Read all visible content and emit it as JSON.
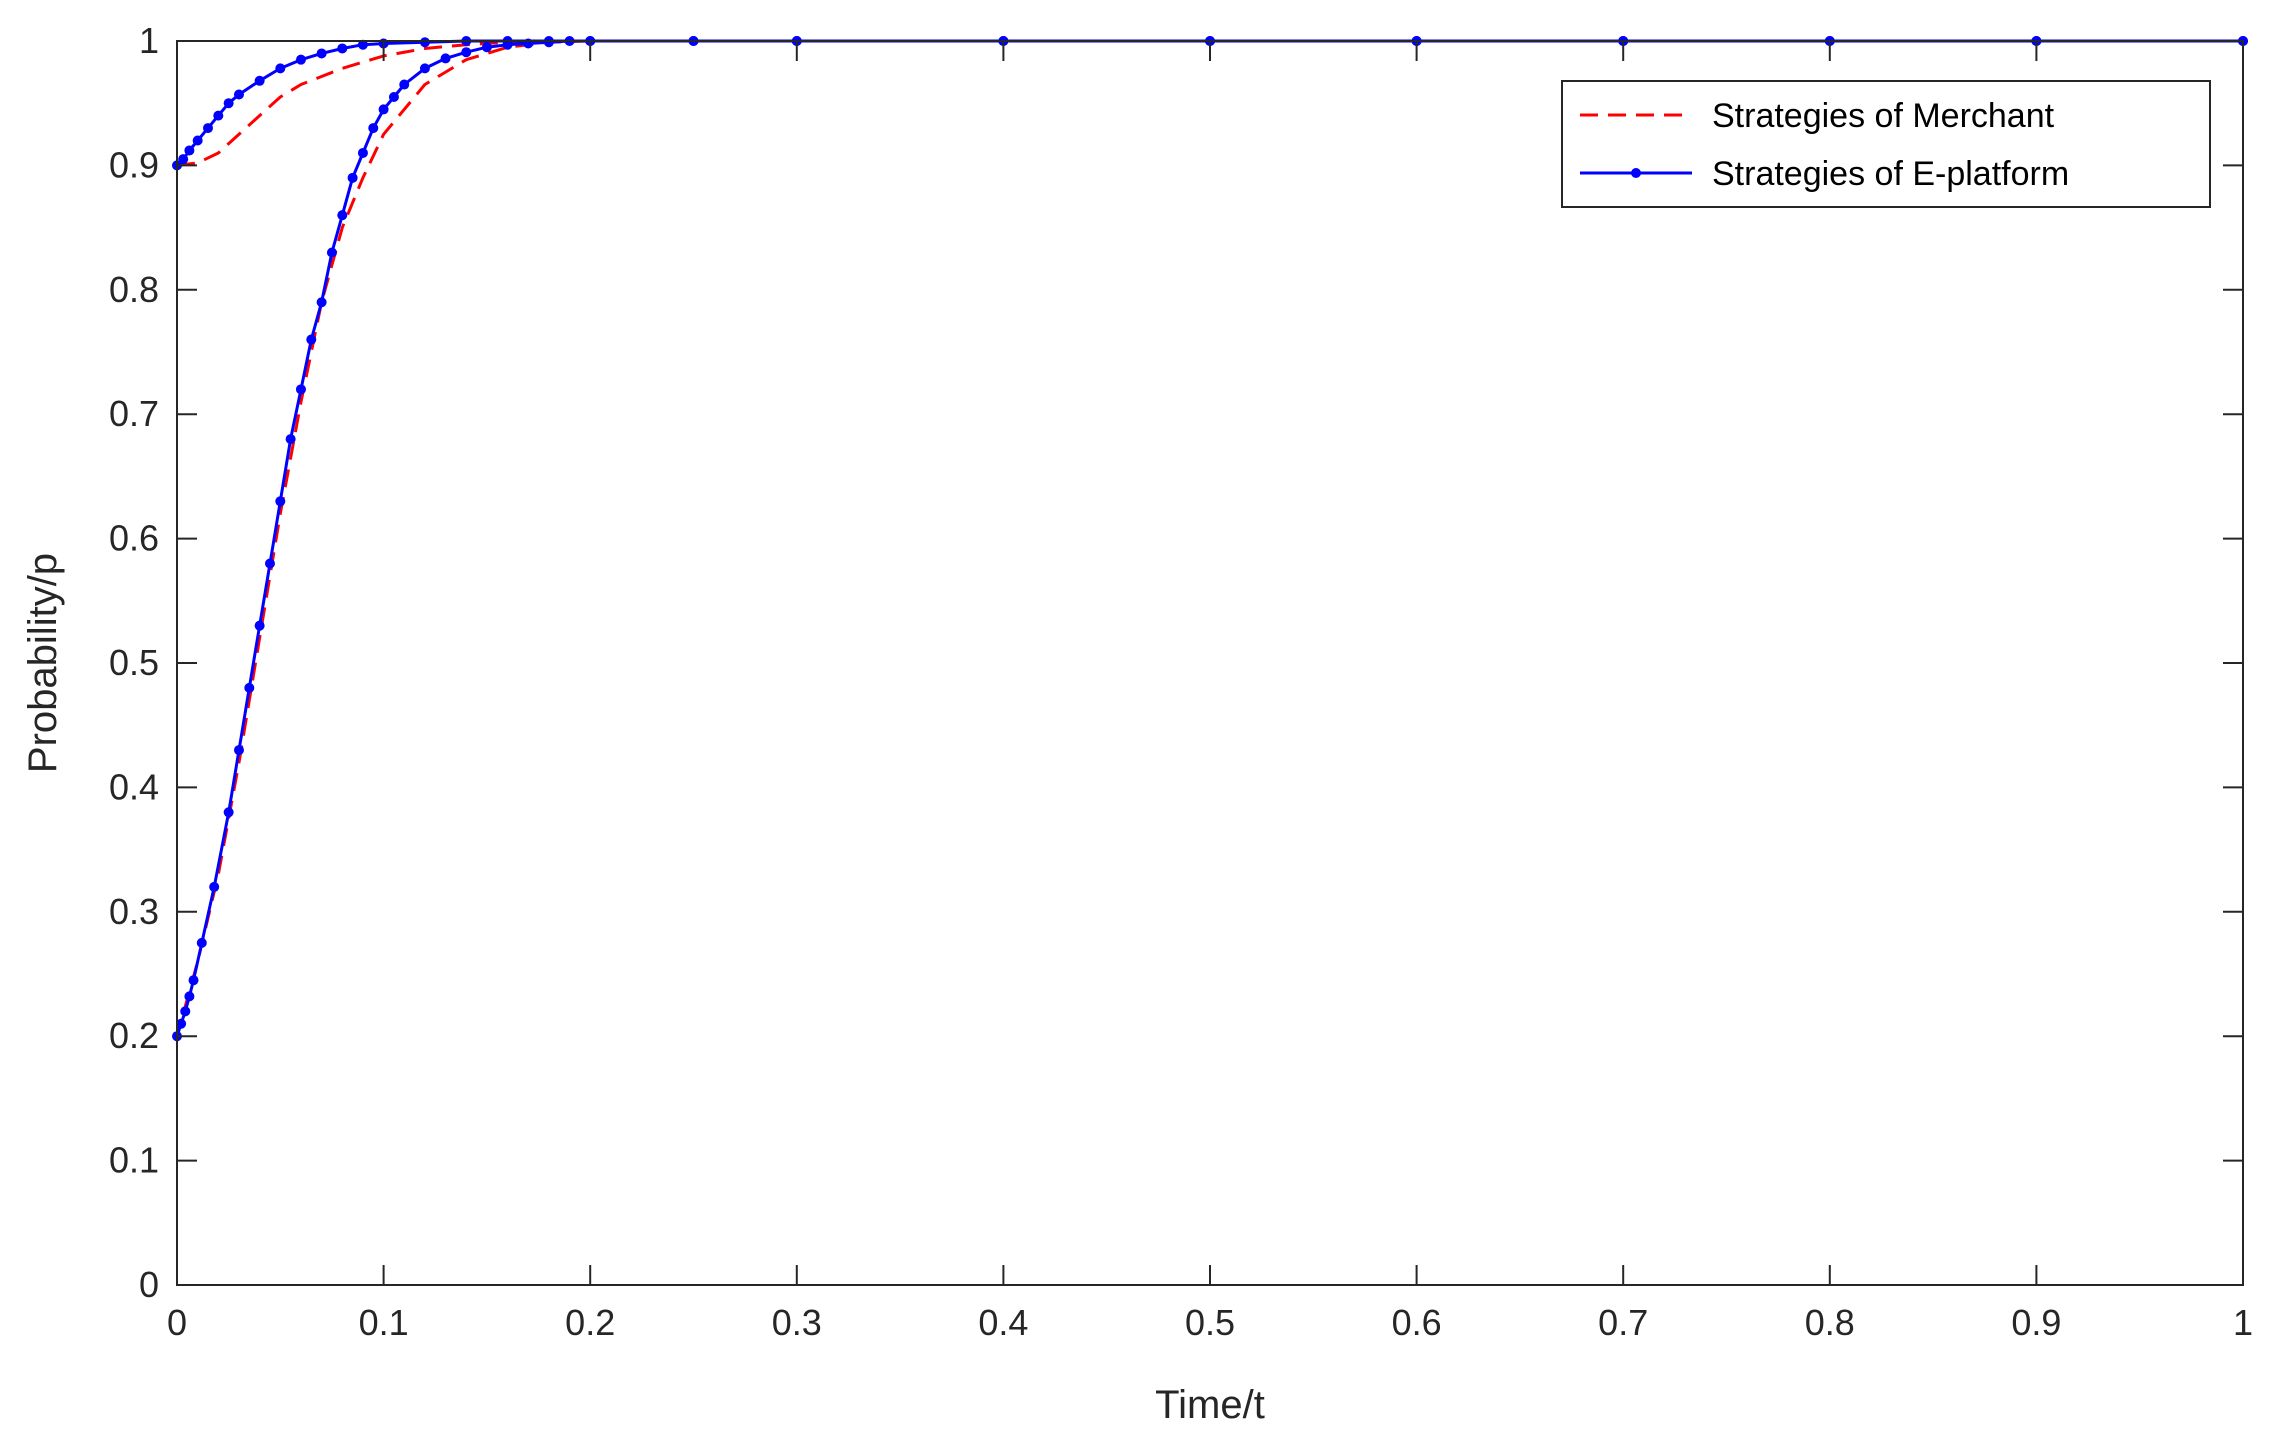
{
  "chart_data": {
    "type": "line",
    "title": "",
    "xlabel": "Time/t",
    "ylabel": "Probability/p",
    "xlim": [
      0,
      1
    ],
    "ylim": [
      0,
      1
    ],
    "xticks": [
      "0",
      "0.1",
      "0.2",
      "0.3",
      "0.4",
      "0.5",
      "0.6",
      "0.7",
      "0.8",
      "0.9",
      "1"
    ],
    "yticks": [
      "0",
      "0.1",
      "0.2",
      "0.3",
      "0.4",
      "0.5",
      "0.6",
      "0.7",
      "0.8",
      "0.9",
      "1"
    ],
    "grid": false,
    "legend_position": "top-right",
    "series": [
      {
        "name": "Strategies of Merchant",
        "style": "dashed",
        "color": "#ff0000",
        "markers": false,
        "curves": [
          {
            "x": [
              0,
              0.01,
              0.02,
              0.03,
              0.04,
              0.05,
              0.06,
              0.08,
              0.1,
              0.12,
              0.14,
              0.16,
              0.18,
              0.2,
              1.0
            ],
            "y": [
              0.9,
              0.902,
              0.91,
              0.925,
              0.94,
              0.955,
              0.965,
              0.978,
              0.988,
              0.994,
              0.997,
              0.999,
              1.0,
              1.0,
              1.0
            ]
          },
          {
            "x": [
              0,
              0.01,
              0.02,
              0.03,
              0.04,
              0.05,
              0.06,
              0.07,
              0.08,
              0.09,
              0.1,
              0.12,
              0.14,
              0.16,
              0.18,
              0.2,
              1.0
            ],
            "y": [
              0.2,
              0.26,
              0.33,
              0.42,
              0.52,
              0.62,
              0.71,
              0.79,
              0.85,
              0.89,
              0.925,
              0.965,
              0.985,
              0.995,
              0.999,
              1.0,
              1.0
            ]
          }
        ]
      },
      {
        "name": "Strategies of E-platform",
        "style": "solid",
        "color": "#0000ff",
        "markers": true,
        "curves": [
          {
            "x": [
              0,
              0.003,
              0.006,
              0.01,
              0.015,
              0.02,
              0.025,
              0.03,
              0.04,
              0.05,
              0.06,
              0.07,
              0.08,
              0.09,
              0.1,
              0.12,
              0.14,
              0.16,
              0.18,
              0.2,
              0.25,
              0.3,
              0.4,
              0.5,
              0.6,
              0.7,
              0.8,
              0.9,
              1.0
            ],
            "y": [
              0.9,
              0.905,
              0.912,
              0.92,
              0.93,
              0.94,
              0.95,
              0.957,
              0.968,
              0.978,
              0.985,
              0.99,
              0.994,
              0.997,
              0.998,
              0.999,
              1.0,
              1.0,
              1.0,
              1.0,
              1.0,
              1.0,
              1.0,
              1.0,
              1.0,
              1.0,
              1.0,
              1.0,
              1.0
            ]
          },
          {
            "x": [
              0,
              0.002,
              0.004,
              0.006,
              0.008,
              0.012,
              0.018,
              0.025,
              0.03,
              0.035,
              0.04,
              0.045,
              0.05,
              0.055,
              0.06,
              0.065,
              0.07,
              0.075,
              0.08,
              0.085,
              0.09,
              0.095,
              0.1,
              0.105,
              0.11,
              0.12,
              0.13,
              0.14,
              0.15,
              0.16,
              0.17,
              0.18,
              0.19,
              0.2,
              0.25,
              0.3,
              0.4,
              0.5,
              0.6,
              0.7,
              0.8,
              0.9,
              1.0
            ],
            "y": [
              0.2,
              0.21,
              0.22,
              0.232,
              0.245,
              0.275,
              0.32,
              0.38,
              0.43,
              0.48,
              0.53,
              0.58,
              0.63,
              0.68,
              0.72,
              0.76,
              0.79,
              0.83,
              0.86,
              0.89,
              0.91,
              0.93,
              0.945,
              0.955,
              0.965,
              0.978,
              0.986,
              0.991,
              0.995,
              0.997,
              0.998,
              0.999,
              1.0,
              1.0,
              1.0,
              1.0,
              1.0,
              1.0,
              1.0,
              1.0,
              1.0,
              1.0,
              1.0
            ]
          }
        ]
      }
    ]
  }
}
